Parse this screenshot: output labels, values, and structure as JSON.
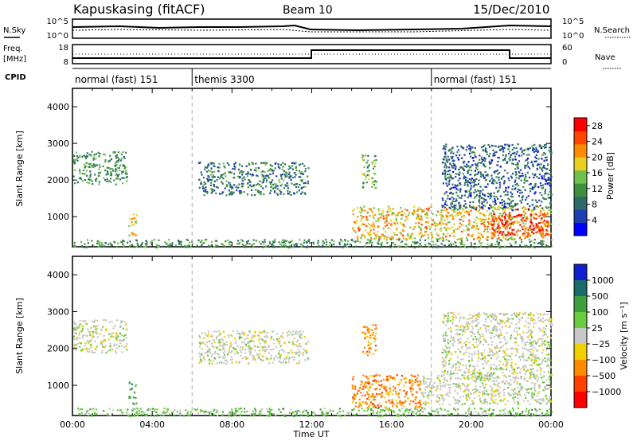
{
  "header": {
    "station": "Kapuskasing (fitACF)",
    "beam": "Beam 10",
    "date": "15/Dec/2010"
  },
  "panel_labels": {
    "nsky": "N.Sky",
    "nsearch": "N.Search",
    "freq": "Freq.",
    "freq_unit": "[MHz]",
    "nave": "Nave",
    "cpid": "CPID"
  },
  "noise_axis": {
    "left_ticks": [
      "10^5",
      "10^0"
    ],
    "right_ticks": [
      "10^5",
      "10^0"
    ]
  },
  "freq_axis": {
    "left_ticks": [
      "18",
      "8"
    ],
    "right_ticks": [
      "60",
      "0"
    ]
  },
  "cpid_segments": [
    {
      "label": "normal (fast) 151",
      "start": 0.0,
      "end": 6.0
    },
    {
      "label": "themis 3300",
      "start": 6.0,
      "end": 18.0
    },
    {
      "label": "normal (fast) 151",
      "start": 18.0,
      "end": 24.0
    }
  ],
  "chart_data": [
    {
      "type": "heatmap",
      "title": "",
      "xlabel": "Time UT",
      "ylabel": "Slant Range [km]",
      "xlim": [
        0,
        24
      ],
      "ylim": [
        180,
        4500
      ],
      "yticks": [
        1000,
        2000,
        3000,
        4000
      ],
      "colorbar": {
        "label": "Power [dB]",
        "range": [
          0,
          30
        ],
        "ticks": [
          4,
          8,
          12,
          16,
          20,
          24,
          28
        ]
      },
      "echo_regions": [
        {
          "t": [
            0.0,
            2.7
          ],
          "r": [
            1900,
            2800
          ],
          "level": 10
        },
        {
          "t": [
            6.3,
            11.8
          ],
          "r": [
            1600,
            2500
          ],
          "level": 8
        },
        {
          "t": [
            14.0,
            24.0
          ],
          "r": [
            400,
            1300
          ],
          "level": 18
        },
        {
          "t": [
            21.0,
            23.8
          ],
          "r": [
            500,
            1100
          ],
          "level": 26
        },
        {
          "t": [
            18.5,
            24.0
          ],
          "r": [
            1200,
            3000
          ],
          "level": 6
        },
        {
          "t": [
            0.0,
            24.0
          ],
          "r": [
            180,
            400
          ],
          "level": 10
        },
        {
          "t": [
            14.5,
            15.2
          ],
          "r": [
            1800,
            2700
          ],
          "level": 12
        },
        {
          "t": [
            2.8,
            3.2
          ],
          "r": [
            500,
            1100
          ],
          "level": 18
        }
      ]
    },
    {
      "type": "heatmap",
      "title": "",
      "xlabel": "Time UT",
      "ylabel": "Slant Range [km]",
      "xlim": [
        0,
        24
      ],
      "ylim": [
        180,
        4500
      ],
      "yticks": [
        1000,
        2000,
        3000,
        4000
      ],
      "xticks": [
        "00:00",
        "04:00",
        "08:00",
        "12:00",
        "16:00",
        "20:00",
        "00:00"
      ],
      "colorbar": {
        "label": "Velocity [m s⁻¹]",
        "ticks": [
          "1000",
          "500",
          "100",
          "25",
          "−25",
          "−100",
          "−500",
          "−1000"
        ]
      },
      "echo_regions": [
        {
          "t": [
            0.0,
            2.7
          ],
          "r": [
            1900,
            2800
          ],
          "velocity": 0
        },
        {
          "t": [
            6.3,
            11.8
          ],
          "r": [
            1600,
            2500
          ],
          "velocity": 0
        },
        {
          "t": [
            14.0,
            17.5
          ],
          "r": [
            400,
            1300
          ],
          "velocity": -100
        },
        {
          "t": [
            17.5,
            24.0
          ],
          "r": [
            500,
            1300
          ],
          "velocity": 0
        },
        {
          "t": [
            18.5,
            24.0
          ],
          "r": [
            1200,
            3000
          ],
          "velocity": 0
        },
        {
          "t": [
            0.0,
            24.0
          ],
          "r": [
            180,
            400
          ],
          "velocity": 50
        },
        {
          "t": [
            14.5,
            15.2
          ],
          "r": [
            1800,
            2700
          ],
          "velocity": -100
        },
        {
          "t": [
            2.8,
            3.2
          ],
          "r": [
            500,
            1100
          ],
          "velocity": 100
        }
      ]
    }
  ],
  "power_colors": [
    "#0000ff",
    "#1f3fb0",
    "#2e6a6a",
    "#3f8f3f",
    "#70c050",
    "#e8d020",
    "#ff8c00",
    "#ff4500",
    "#ff0000"
  ],
  "velocity_colors": [
    "#1020d0",
    "#1a6a6a",
    "#3f9f3f",
    "#6acc40",
    "#c8c8c8",
    "#f0d000",
    "#ff8c00",
    "#ff4000",
    "#ff0000"
  ]
}
